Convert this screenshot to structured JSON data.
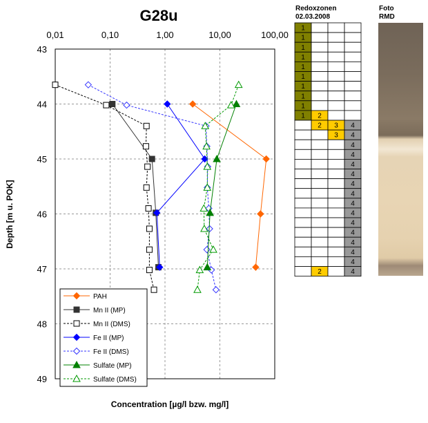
{
  "chart_data": {
    "type": "line",
    "title": "G28u",
    "xlabel": "Concentration [µg/l bzw. mg/l]",
    "ylabel": "Depth [m u. POK]",
    "x_scale": "log",
    "xlim": [
      0.01,
      100
    ],
    "ylim": [
      43,
      49
    ],
    "x_ticks": [
      "0,01",
      "0,10",
      "1,00",
      "10,00",
      "100,00"
    ],
    "y_ticks": [
      "43",
      "44",
      "45",
      "46",
      "47",
      "48",
      "49"
    ],
    "grid": true,
    "legend_position": "bottom-left",
    "series": [
      {
        "name": "PAH",
        "color": "#ff6600",
        "marker": "diamond",
        "fill": true,
        "dash": false,
        "points": [
          [
            3.2,
            44.0
          ],
          [
            70,
            45.0
          ],
          [
            55,
            46.0
          ],
          [
            45,
            46.97
          ]
        ]
      },
      {
        "name": "Mn II (MP)",
        "color": "#333333",
        "marker": "square",
        "fill": true,
        "dash": false,
        "points": [
          [
            0.11,
            44.0
          ],
          [
            0.58,
            45.0
          ],
          [
            0.68,
            45.98
          ],
          [
            0.76,
            46.97
          ]
        ]
      },
      {
        "name": "Mn II (DMS)",
        "color": "#000000",
        "marker": "square",
        "fill": false,
        "dash": true,
        "points": [
          [
            0.01,
            43.65
          ],
          [
            0.085,
            44.02
          ],
          [
            0.46,
            44.4
          ],
          [
            0.45,
            44.77
          ],
          [
            0.48,
            45.14
          ],
          [
            0.46,
            45.52
          ],
          [
            0.5,
            45.9
          ],
          [
            0.52,
            46.27
          ],
          [
            0.52,
            46.65
          ],
          [
            0.52,
            47.02
          ],
          [
            0.63,
            47.38
          ]
        ]
      },
      {
        "name": "Fe II (MP)",
        "color": "#0000ff",
        "marker": "diamond",
        "fill": true,
        "dash": false,
        "points": [
          [
            1.1,
            44.0
          ],
          [
            5.3,
            45.0
          ],
          [
            0.71,
            45.98
          ],
          [
            0.8,
            46.97
          ]
        ]
      },
      {
        "name": "Fe II (DMS)",
        "color": "#3333ff",
        "marker": "diamond",
        "fill": false,
        "dash": true,
        "points": [
          [
            0.04,
            43.65
          ],
          [
            0.2,
            44.02
          ],
          [
            5.6,
            44.4
          ],
          [
            5.8,
            44.77
          ],
          [
            6.0,
            45.14
          ],
          [
            5.9,
            45.52
          ],
          [
            6.3,
            45.9
          ],
          [
            6.5,
            46.27
          ],
          [
            5.8,
            46.65
          ],
          [
            7.0,
            47.02
          ],
          [
            8.5,
            47.38
          ]
        ]
      },
      {
        "name": "Sulfate (MP)",
        "color": "#008000",
        "marker": "triangle",
        "fill": true,
        "dash": false,
        "points": [
          [
            20,
            44.0
          ],
          [
            8.8,
            45.0
          ],
          [
            6.6,
            45.98
          ],
          [
            5.9,
            46.97
          ]
        ]
      },
      {
        "name": "Sulfate (DMS)",
        "color": "#009900",
        "marker": "triangle",
        "fill": false,
        "dash": true,
        "points": [
          [
            22,
            43.65
          ],
          [
            16,
            44.02
          ],
          [
            5.4,
            44.4
          ],
          [
            5.7,
            44.77
          ],
          [
            5.9,
            45.14
          ],
          [
            5.9,
            45.52
          ],
          [
            5.1,
            45.9
          ],
          [
            5.2,
            46.27
          ],
          [
            7.6,
            46.65
          ],
          [
            4.3,
            47.02
          ],
          [
            3.9,
            47.38
          ]
        ]
      }
    ]
  },
  "redox": {
    "title_line1": "Redoxzonen",
    "title_line2": "02.03.2008",
    "colors": {
      "1": "#808000",
      "2": "#ffcc00",
      "3": "#ffcc00",
      "4": "#999999"
    },
    "rows": [
      [
        "1",
        "",
        "",
        ""
      ],
      [
        "1",
        "",
        "",
        ""
      ],
      [
        "1",
        "",
        "",
        ""
      ],
      [
        "1",
        "",
        "",
        ""
      ],
      [
        "1",
        "",
        "",
        ""
      ],
      [
        "1",
        "",
        "",
        ""
      ],
      [
        "1",
        "",
        "",
        ""
      ],
      [
        "1",
        "",
        "",
        ""
      ],
      [
        "1",
        "",
        "",
        ""
      ],
      [
        "1",
        "2",
        "",
        ""
      ],
      [
        "",
        "2",
        "3",
        "4"
      ],
      [
        "",
        "",
        "3",
        "4"
      ],
      [
        "",
        "",
        "",
        "4"
      ],
      [
        "",
        "",
        "",
        "4"
      ],
      [
        "",
        "",
        "",
        "4"
      ],
      [
        "",
        "",
        "",
        "4"
      ],
      [
        "",
        "",
        "",
        "4"
      ],
      [
        "",
        "",
        "",
        "4"
      ],
      [
        "",
        "",
        "",
        "4"
      ],
      [
        "",
        "",
        "",
        "4"
      ],
      [
        "",
        "",
        "",
        "4"
      ],
      [
        "",
        "",
        "",
        "4"
      ],
      [
        "",
        "",
        "",
        "4"
      ],
      [
        "",
        "",
        "",
        "4"
      ],
      [
        "",
        "",
        "",
        "4"
      ],
      [
        "",
        "2",
        "",
        "4"
      ]
    ]
  },
  "photo": {
    "title_line1": "Foto",
    "title_line2": "RMD"
  }
}
